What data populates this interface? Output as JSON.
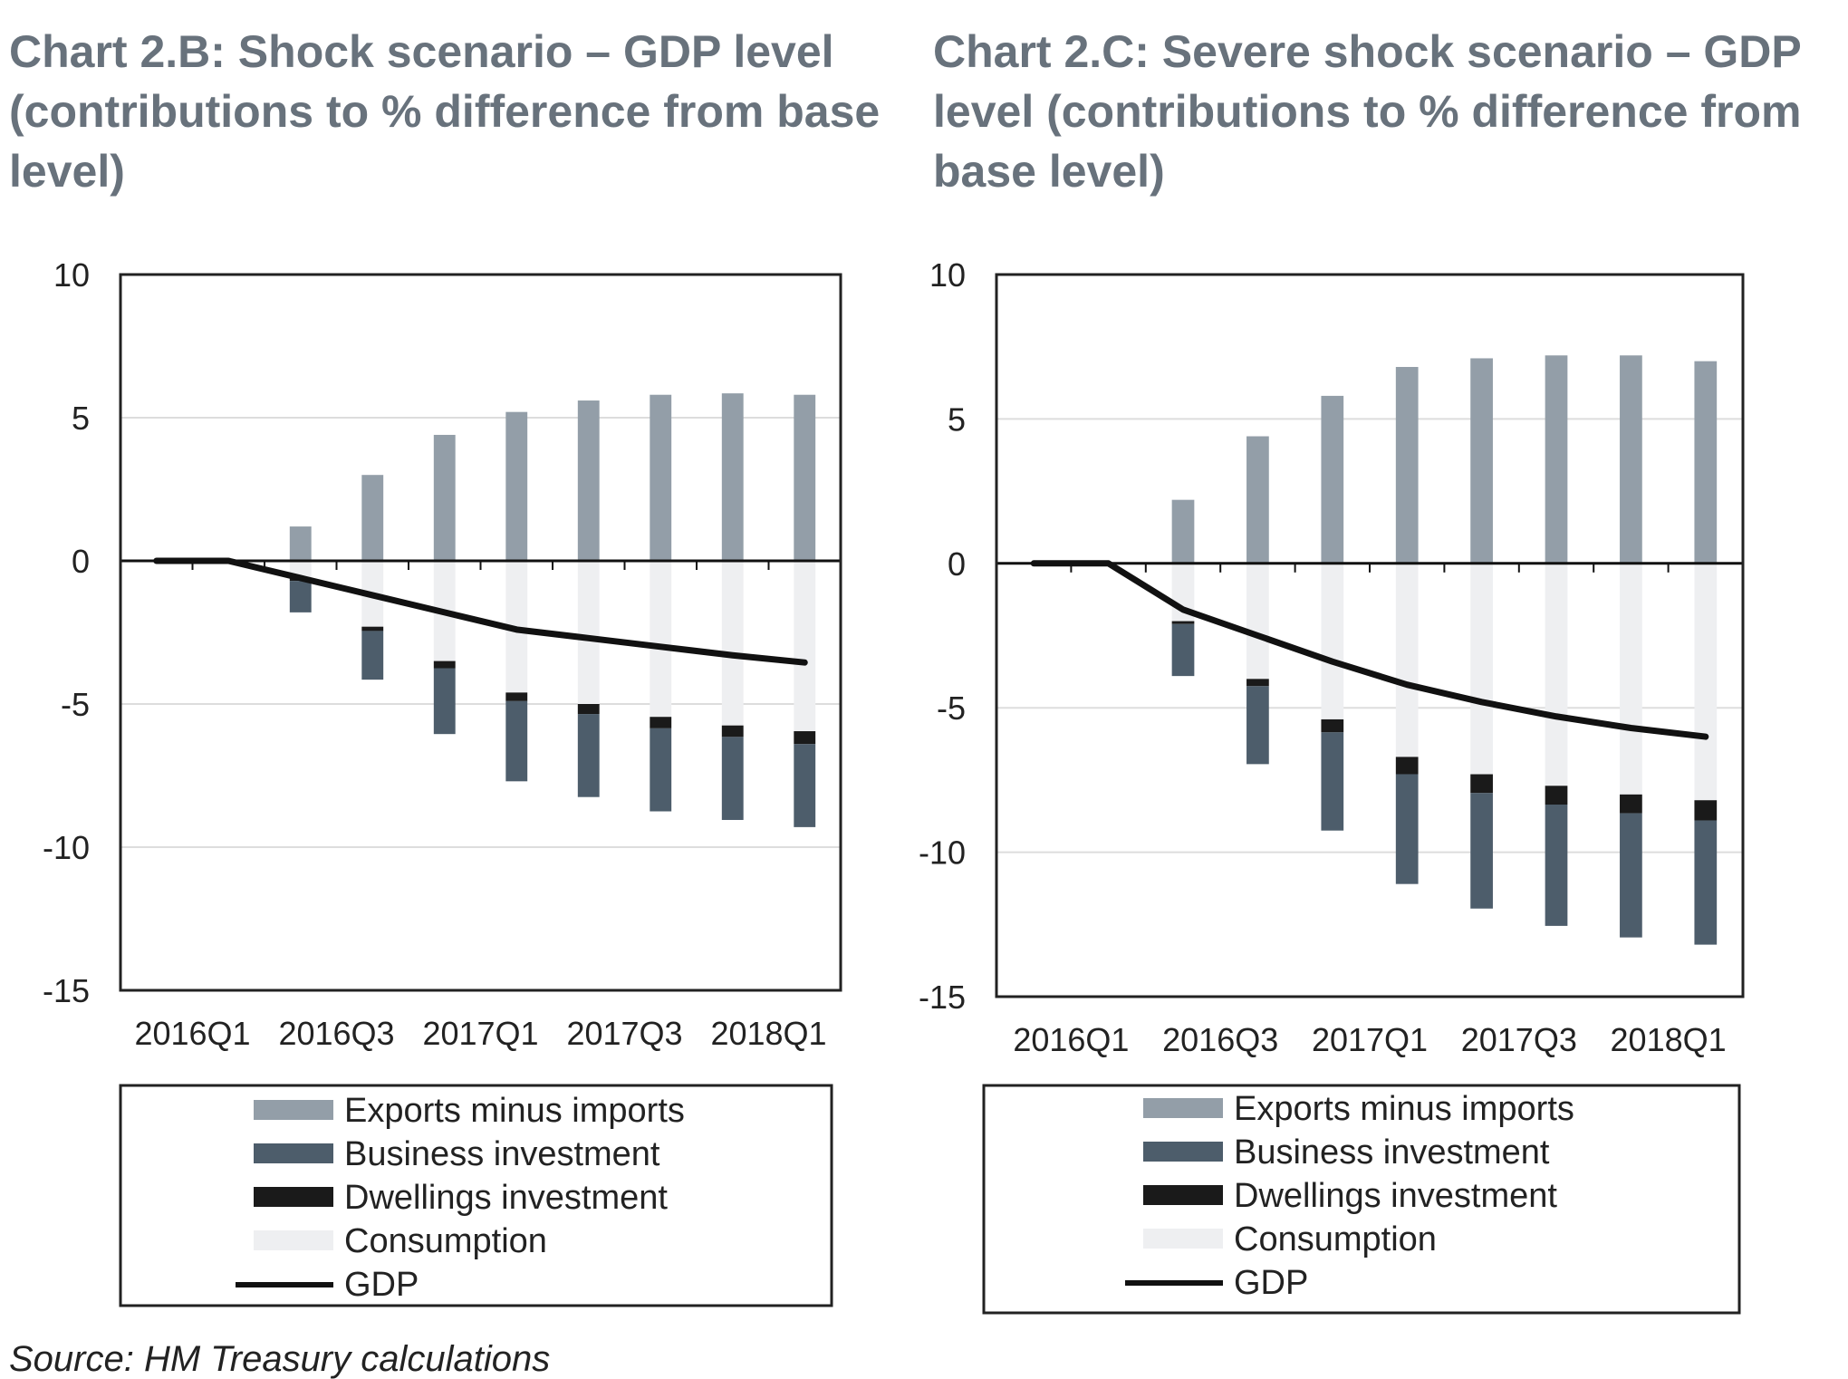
{
  "source": "Source: HM Treasury calculations",
  "colors": {
    "exports": "#939ea8",
    "business": "#4d5d6b",
    "dwellings": "#1a1a1a",
    "consumption": "#eeeff1",
    "gdp": "#111111",
    "grid": "#dddddd",
    "title": "#68727c"
  },
  "chart_data": [
    {
      "type": "bar",
      "stacked": true,
      "title": "Chart 2.B: Shock scenario – GDP level (contributions to % difference from base level)",
      "ylim": [
        -15,
        10
      ],
      "yticks": [
        10,
        5,
        0,
        -5,
        -10,
        -15
      ],
      "x": [
        "2016Q1",
        "2016Q2",
        "2016Q3",
        "2016Q4",
        "2017Q1",
        "2017Q2",
        "2017Q3",
        "2017Q4",
        "2018Q1",
        "2018Q2"
      ],
      "xtick_labels": [
        "2016Q1",
        "2016Q3",
        "2017Q1",
        "2017Q3",
        "2018Q1"
      ],
      "grid": true,
      "legend_position": "bottom",
      "series": [
        {
          "name": "Exports minus imports",
          "kind": "bar",
          "values": [
            0,
            0,
            1.2,
            3.0,
            4.4,
            5.2,
            5.6,
            5.8,
            5.85,
            5.8
          ]
        },
        {
          "name": "Business investment",
          "kind": "bar",
          "values": [
            0,
            0,
            -1.1,
            -1.7,
            -2.3,
            -2.8,
            -2.9,
            -2.9,
            -2.9,
            -2.9
          ]
        },
        {
          "name": "Dwellings investment",
          "kind": "bar",
          "values": [
            0,
            0,
            -0.1,
            -0.15,
            -0.25,
            -0.3,
            -0.35,
            -0.4,
            -0.4,
            -0.45
          ]
        },
        {
          "name": "Consumption",
          "kind": "bar",
          "values": [
            0,
            0,
            -0.6,
            -2.3,
            -3.5,
            -4.6,
            -5.0,
            -5.45,
            -5.75,
            -5.95
          ]
        },
        {
          "name": "GDP",
          "kind": "line",
          "values": [
            0,
            0,
            -0.6,
            -1.2,
            -1.8,
            -2.4,
            -2.7,
            -3.0,
            -3.3,
            -3.55
          ]
        }
      ]
    },
    {
      "type": "bar",
      "stacked": true,
      "title": "Chart 2.C: Severe shock scenario – GDP level (contributions to % difference from base level)",
      "ylim": [
        -15,
        10
      ],
      "yticks": [
        10,
        5,
        0,
        -5,
        -10,
        -15
      ],
      "x": [
        "2016Q1",
        "2016Q2",
        "2016Q3",
        "2016Q4",
        "2017Q1",
        "2017Q2",
        "2017Q3",
        "2017Q4",
        "2018Q1",
        "2018Q2"
      ],
      "xtick_labels": [
        "2016Q1",
        "2016Q3",
        "2017Q1",
        "2017Q3",
        "2018Q1"
      ],
      "grid": true,
      "legend_position": "bottom",
      "series": [
        {
          "name": "Exports minus imports",
          "kind": "bar",
          "values": [
            0,
            0,
            2.2,
            4.4,
            5.8,
            6.8,
            7.1,
            7.2,
            7.2,
            7.0
          ]
        },
        {
          "name": "Business investment",
          "kind": "bar",
          "values": [
            0,
            0,
            -1.8,
            -2.7,
            -3.4,
            -3.8,
            -4.0,
            -4.2,
            -4.3,
            -4.3
          ]
        },
        {
          "name": "Dwellings investment",
          "kind": "bar",
          "values": [
            0,
            0,
            -0.1,
            -0.25,
            -0.45,
            -0.6,
            -0.65,
            -0.65,
            -0.65,
            -0.7
          ]
        },
        {
          "name": "Consumption",
          "kind": "bar",
          "values": [
            0,
            0,
            -2.0,
            -4.0,
            -5.4,
            -6.7,
            -7.3,
            -7.7,
            -8.0,
            -8.2
          ]
        },
        {
          "name": "GDP",
          "kind": "line",
          "values": [
            0,
            0,
            -1.6,
            -2.5,
            -3.4,
            -4.2,
            -4.8,
            -5.3,
            -5.7,
            -6.0
          ]
        }
      ]
    }
  ]
}
